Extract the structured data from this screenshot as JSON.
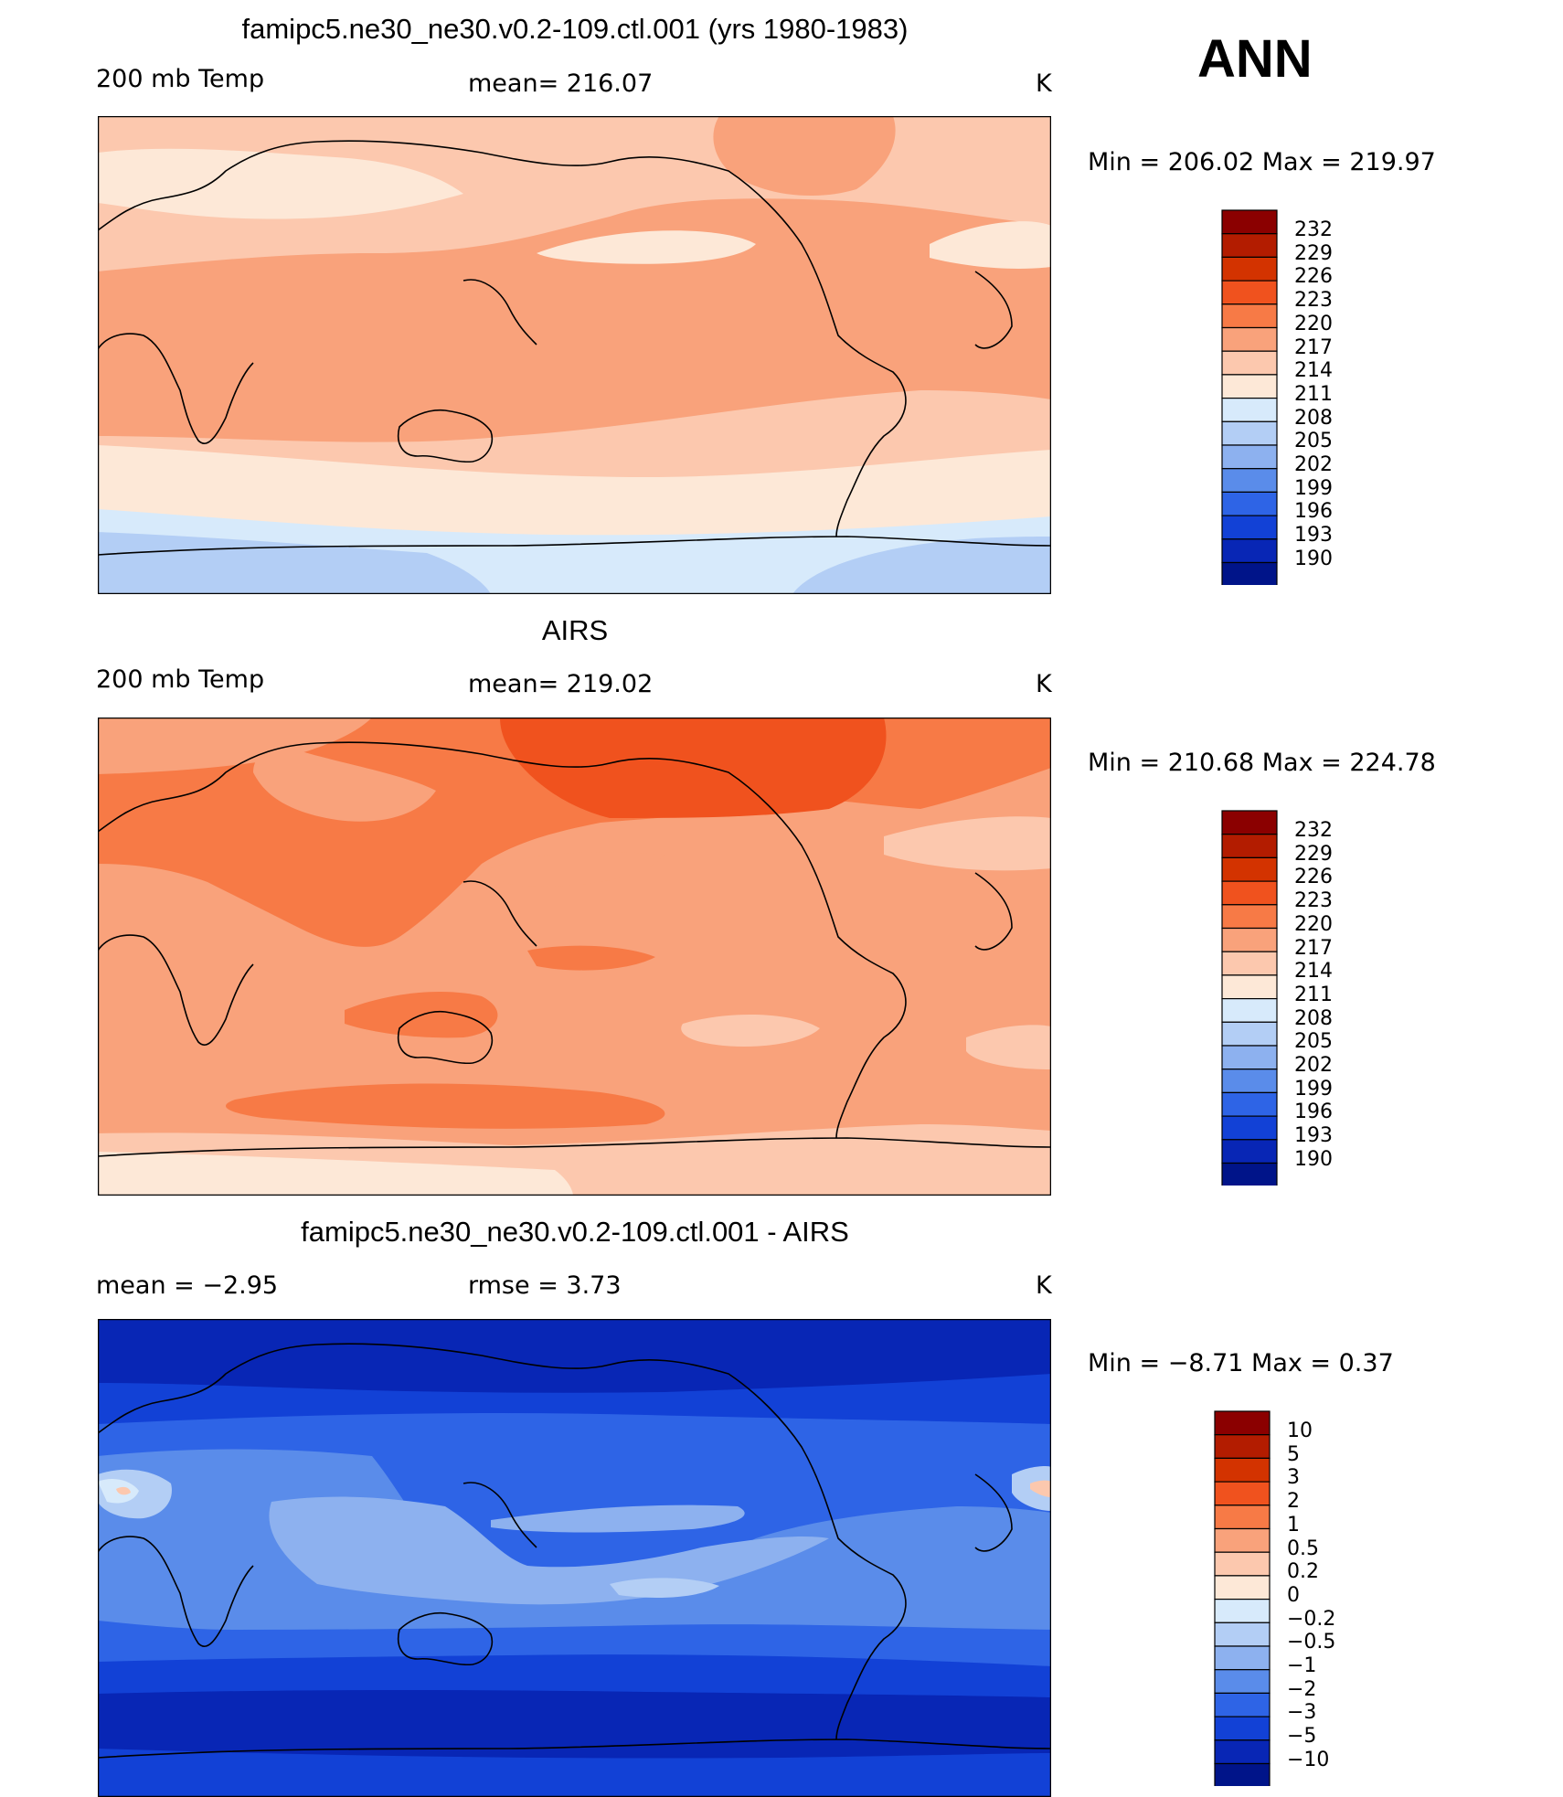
{
  "season": "ANN",
  "panels": [
    {
      "id": "model",
      "title": "famipc5.ne30_ne30.v0.2-109.ctl.001 (yrs 1980-1983)",
      "left": "200 mb Temp",
      "center": "mean= 216.07",
      "units": "K",
      "minmax": "Min = 206.02 Max = 219.97",
      "levels": [
        "232",
        "229",
        "226",
        "223",
        "220",
        "217",
        "214",
        "211",
        "208",
        "205",
        "202",
        "199",
        "196",
        "193",
        "190"
      ],
      "colors": [
        "#8b0000",
        "#b31c00",
        "#d33300",
        "#f0521e",
        "#f77a46",
        "#f9a27b",
        "#fcc8ae",
        "#fde8d7",
        "#d7eafb",
        "#b3cef5",
        "#8db1ef",
        "#5a8cea",
        "#2e64e6",
        "#1241d6",
        "#0826b5",
        "#001489"
      ]
    },
    {
      "id": "obs",
      "title": "AIRS",
      "left": "200 mb Temp",
      "center": "mean= 219.02",
      "units": "K",
      "minmax": "Min = 210.68 Max = 224.78",
      "levels": [
        "232",
        "229",
        "226",
        "223",
        "220",
        "217",
        "214",
        "211",
        "208",
        "205",
        "202",
        "199",
        "196",
        "193",
        "190"
      ],
      "colors": [
        "#8b0000",
        "#b31c00",
        "#d33300",
        "#f0521e",
        "#f77a46",
        "#f9a27b",
        "#fcc8ae",
        "#fde8d7",
        "#d7eafb",
        "#b3cef5",
        "#8db1ef",
        "#5a8cea",
        "#2e64e6",
        "#1241d6",
        "#0826b5",
        "#001489"
      ]
    },
    {
      "id": "diff",
      "title": "famipc5.ne30_ne30.v0.2-109.ctl.001 - AIRS",
      "left": "mean =   −2.95",
      "center": "rmse =    3.73",
      "units": "K",
      "minmax": "Min =   −8.71 Max =    0.37",
      "levels": [
        "10",
        "5",
        "3",
        "2",
        "1",
        "0.5",
        "0.2",
        "0",
        "−0.2",
        "−0.5",
        "−1",
        "−2",
        "−3",
        "−5",
        "−10"
      ],
      "colors": [
        "#8b0000",
        "#b31c00",
        "#d33300",
        "#f0521e",
        "#f77a46",
        "#f9a27b",
        "#fcc8ae",
        "#fde8d7",
        "#d7eafb",
        "#b3cef5",
        "#8db1ef",
        "#5a8cea",
        "#2e64e6",
        "#1241d6",
        "#0826b5",
        "#001489"
      ]
    }
  ]
}
